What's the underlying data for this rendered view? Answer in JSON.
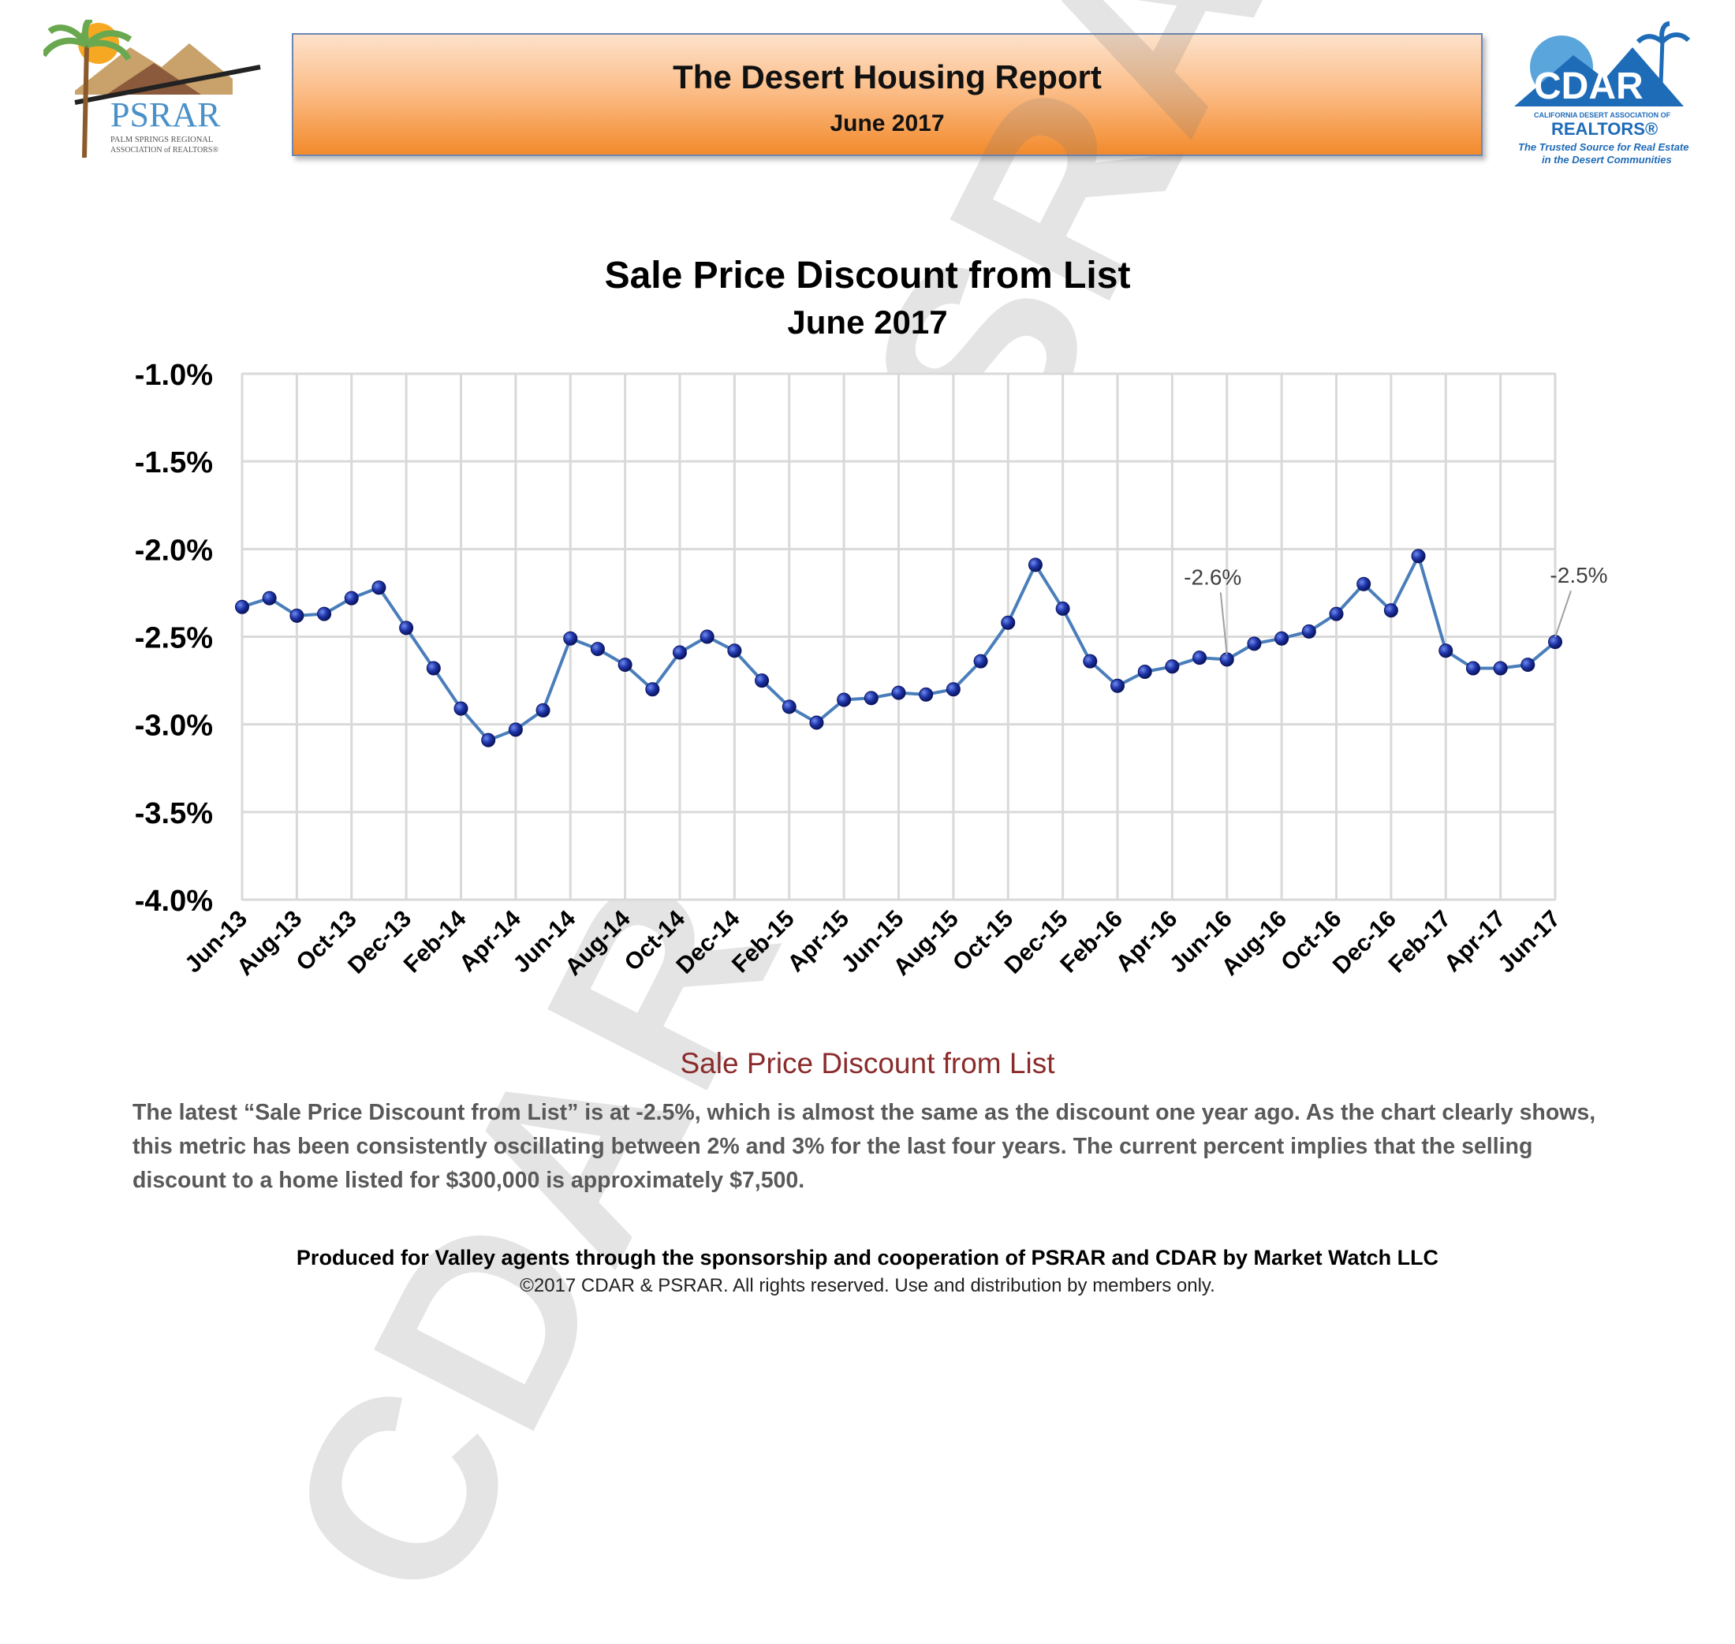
{
  "header": {
    "title": "The Desert Housing Report",
    "subtitle": "June 2017"
  },
  "logo_left": {
    "name": "PSRAR",
    "tagline_1": "PALM SPRINGS REGIONAL",
    "tagline_2": "ASSOCIATION of REALTORS®"
  },
  "logo_right": {
    "name": "CDAR",
    "org_1": "CALIFORNIA DESERT ASSOCIATION OF",
    "org_2": "REALTORS®",
    "slogan_1": "The Trusted Source for Real Estate",
    "slogan_2": "in the Desert Communities"
  },
  "watermark": "CDAR & PSRAR",
  "chart_data": {
    "type": "line",
    "title": "Sale Price Discount from List",
    "subtitle": "June  2017",
    "x": [
      "Jun-13",
      "Jul-13",
      "Aug-13",
      "Sep-13",
      "Oct-13",
      "Nov-13",
      "Dec-13",
      "Jan-14",
      "Feb-14",
      "Mar-14",
      "Apr-14",
      "May-14",
      "Jun-14",
      "Jul-14",
      "Aug-14",
      "Sep-14",
      "Oct-14",
      "Nov-14",
      "Dec-14",
      "Jan-15",
      "Feb-15",
      "Mar-15",
      "Apr-15",
      "May-15",
      "Jun-15",
      "Jul-15",
      "Aug-15",
      "Sep-15",
      "Oct-15",
      "Nov-15",
      "Dec-15",
      "Jan-16",
      "Feb-16",
      "Mar-16",
      "Apr-16",
      "May-16",
      "Jun-16",
      "Jul-16",
      "Aug-16",
      "Sep-16",
      "Oct-16",
      "Nov-16",
      "Dec-16",
      "Jan-17",
      "Feb-17",
      "Mar-17",
      "Apr-17",
      "May-17",
      "Jun-17"
    ],
    "tick_labels": [
      "Jun-13",
      "Aug-13",
      "Oct-13",
      "Dec-13",
      "Feb-14",
      "Apr-14",
      "Jun-14",
      "Aug-14",
      "Oct-14",
      "Dec-14",
      "Feb-15",
      "Apr-15",
      "Jun-15",
      "Aug-15",
      "Oct-15",
      "Dec-15",
      "Feb-16",
      "Apr-16",
      "Jun-16",
      "Aug-16",
      "Oct-16",
      "Dec-16",
      "Feb-17",
      "Apr-17",
      "Jun-17"
    ],
    "series": [
      {
        "values": [
          -2.33,
          -2.28,
          -2.38,
          -2.37,
          -2.28,
          -2.22,
          -2.45,
          -2.68,
          -2.91,
          -3.09,
          -3.03,
          -2.92,
          -2.51,
          -2.57,
          -2.66,
          -2.8,
          -2.59,
          -2.5,
          -2.58,
          -2.75,
          -2.9,
          -2.99,
          -2.86,
          -2.85,
          -2.82,
          -2.83,
          -2.8,
          -2.64,
          -2.42,
          -2.09,
          -2.34,
          -2.64,
          -2.78,
          -2.7,
          -2.67,
          -2.62,
          -2.63,
          -2.54,
          -2.51,
          -2.47,
          -2.37,
          -2.2,
          -2.35,
          -2.04,
          -2.58,
          -2.68,
          -2.68,
          -2.66,
          -2.53
        ]
      }
    ],
    "annotations": [
      {
        "text": "-2.6%",
        "index": 36
      },
      {
        "text": "-2.5%",
        "index": 48
      }
    ],
    "ylim": [
      -4.0,
      -1.0
    ],
    "yticks": [
      -1.0,
      -1.5,
      -2.0,
      -2.5,
      -3.0,
      -3.5,
      -4.0
    ],
    "ytick_labels": [
      "-1.0%",
      "-1.5%",
      "-2.0%",
      "-2.5%",
      "-3.0%",
      "-3.5%",
      "-4.0%"
    ],
    "grid": true,
    "colors": {
      "line": "#4a7ebb",
      "marker": "#1a2f8a",
      "grid": "#d9d9d9"
    }
  },
  "caption": {
    "title": "Sale Price Discount from List",
    "body": "The latest “Sale Price Discount from List” is at -2.5%, which is almost the same as the discount one year ago. As the chart clearly shows, this metric has been consistently oscillating between 2% and 3% for the last four years. The current percent implies that the selling discount to a home listed for $300,000 is approximately $7,500."
  },
  "footer": {
    "line1": "Produced for Valley agents through the sponsorship and cooperation of PSRAR and CDAR by Market Watch LLC",
    "line2": "©2017 CDAR & PSRAR.  All rights reserved.  Use and distribution by members only."
  }
}
